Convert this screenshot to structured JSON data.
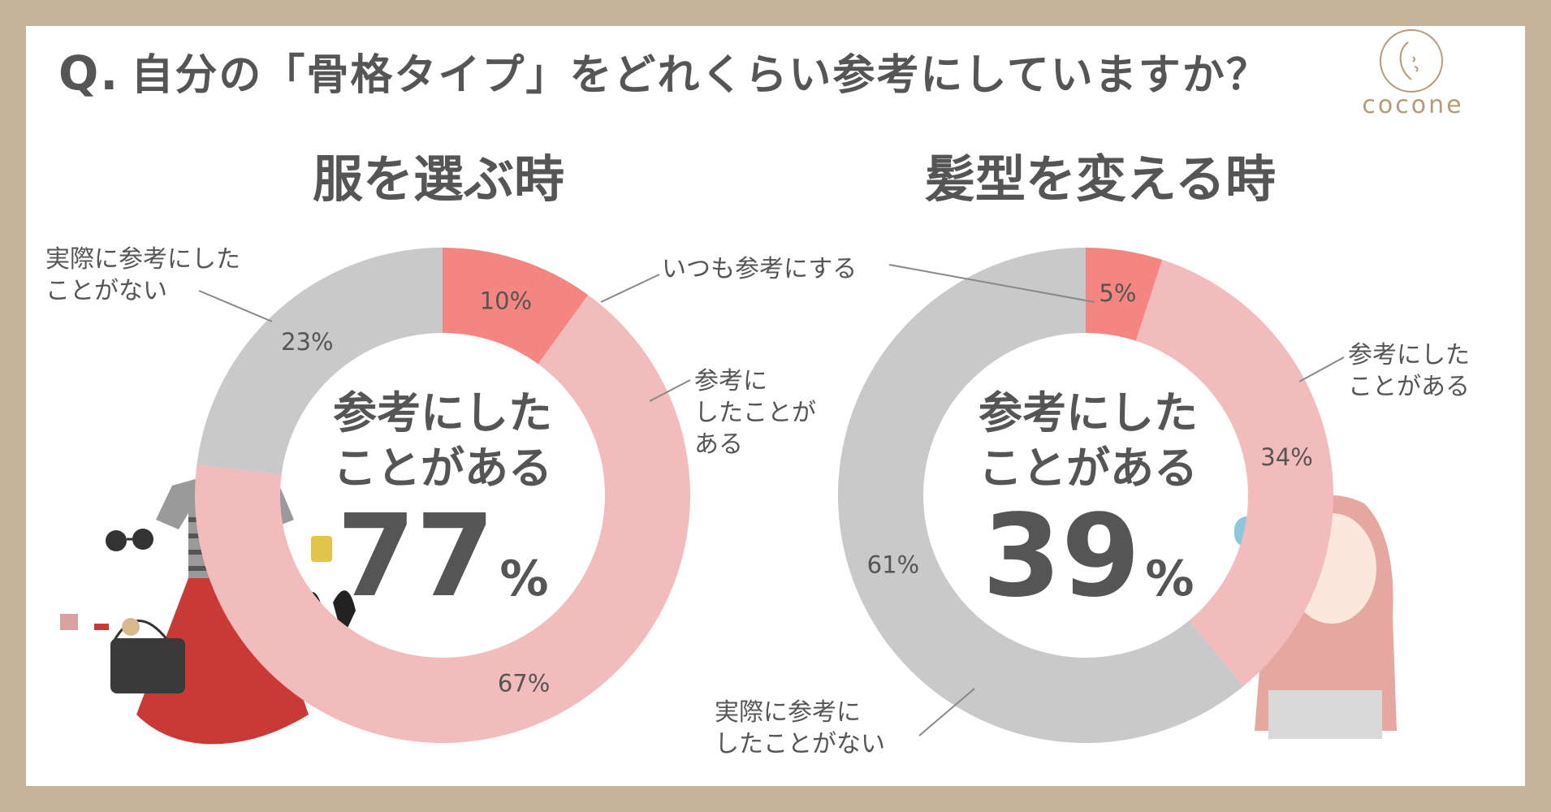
{
  "question": {
    "prefix": "Q.",
    "text": "自分の「骨格タイプ」をどれくらい参考にしていますか？"
  },
  "logo": {
    "text": "cocone"
  },
  "colors": {
    "always": "#f48581",
    "have_referenced": "#f2bcbc",
    "never": "#c9c9c9",
    "frame": "#c4b49b",
    "text": "#555555"
  },
  "chart_data": [
    {
      "type": "pie",
      "title": "服を選ぶ時",
      "center_label": [
        "参考にした",
        "ことがある"
      ],
      "center_value": "77",
      "center_unit": "%",
      "slices": [
        {
          "label": "いつも参考にする",
          "value": 10,
          "display": "10%",
          "color": "#f48581"
        },
        {
          "label": "参考にしたことがある",
          "value": 67,
          "display": "67%",
          "color": "#f2bcbc"
        },
        {
          "label": "実際に参考にしたことがない",
          "value": 23,
          "display": "23%",
          "color": "#c9c9c9"
        }
      ],
      "callouts": [
        {
          "lines": [
            "いつも参考にする"
          ]
        },
        {
          "lines": [
            "参考に",
            "したことが",
            "ある"
          ]
        },
        {
          "lines": [
            "実際に参考にした",
            "ことがない"
          ]
        }
      ]
    },
    {
      "type": "pie",
      "title": "髪型を変える時",
      "center_label": [
        "参考にした",
        "ことがある"
      ],
      "center_value": "39",
      "center_unit": "%",
      "slices": [
        {
          "label": "いつも参考にする",
          "value": 5,
          "display": "5%",
          "color": "#f48581"
        },
        {
          "label": "参考にしたことがある",
          "value": 34,
          "display": "34%",
          "color": "#f2bcbc"
        },
        {
          "label": "実際に参考にしたことがない",
          "value": 61,
          "display": "61%",
          "color": "#c9c9c9"
        }
      ],
      "callouts": [
        {
          "lines": [
            "参考にした",
            "ことがある"
          ]
        },
        {
          "lines": [
            "実際に参考に",
            "したことがない"
          ]
        }
      ]
    }
  ]
}
